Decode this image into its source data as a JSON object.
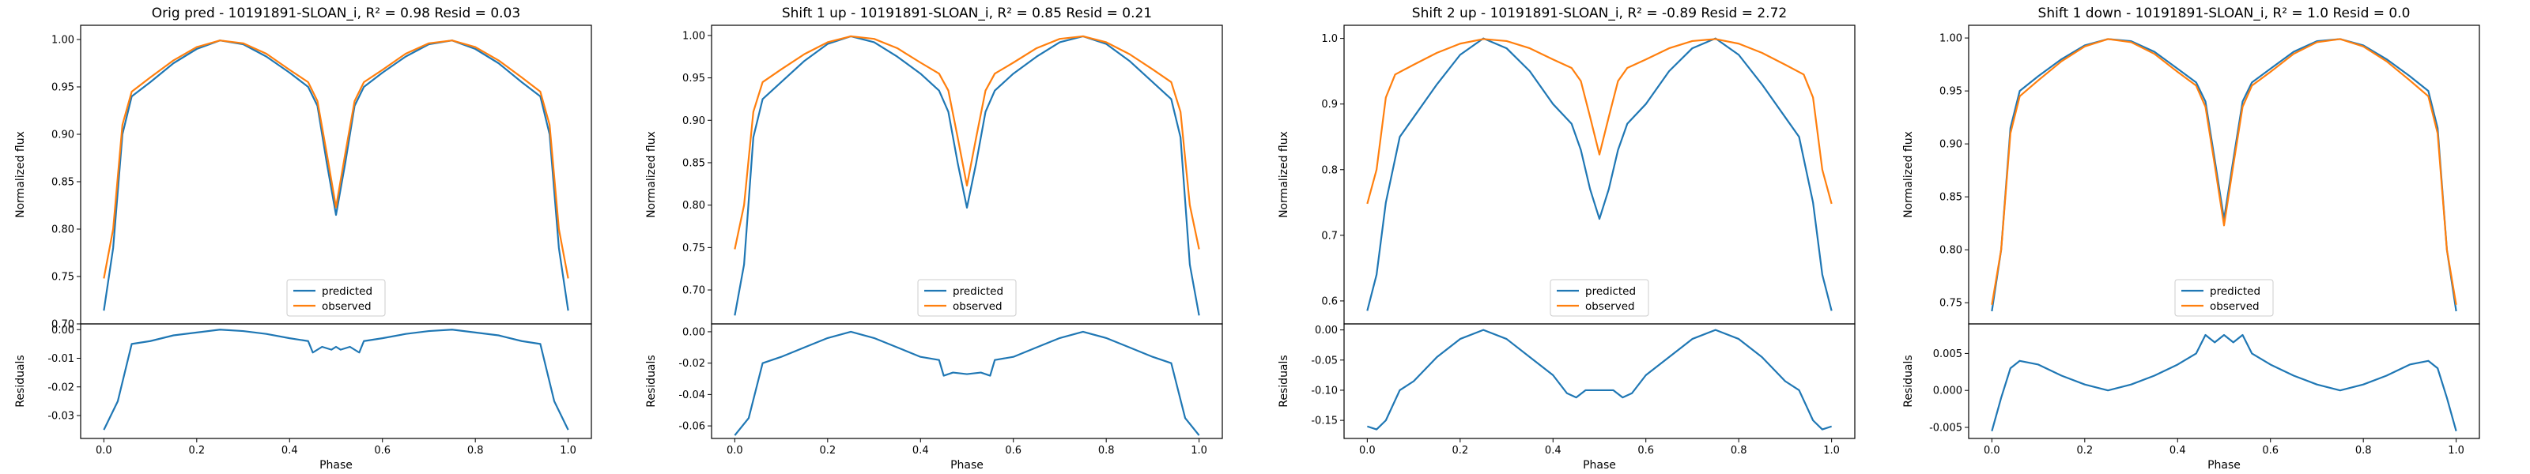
{
  "figure": {
    "xlabel": "Phase"
  },
  "colors": {
    "predicted": "#1f77b4",
    "observed": "#ff7f0e",
    "residual": "#1f77b4",
    "axes": "#000000",
    "legend_border": "#cccccc"
  },
  "chart_data": [
    {
      "type": "line",
      "title": "Orig pred - 10191891-SLOAN_i, R² = 0.98 Resid = 0.03",
      "xlabel": "Phase",
      "ylabel": "Normalized flux",
      "ylabel_resid": "Residuals",
      "xlim": [
        -0.05,
        1.05
      ],
      "ylim": [
        0.7,
        1.015
      ],
      "ylim_resid": [
        -0.038,
        0.002
      ],
      "xticks": [
        "0.0",
        "0.2",
        "0.4",
        "0.6",
        "0.8",
        "1.0"
      ],
      "yticks": [
        "0.70",
        "0.75",
        "0.80",
        "0.85",
        "0.90",
        "0.95",
        "1.00"
      ],
      "yticks_resid": [
        "-0.03",
        "-0.02",
        "-0.01",
        "0.00"
      ],
      "legend": {
        "position": "lower center",
        "entries": [
          "predicted",
          "observed"
        ]
      },
      "series": [
        {
          "name": "predicted",
          "x": [
            0,
            0.02,
            0.04,
            0.06,
            0.1,
            0.15,
            0.2,
            0.25,
            0.3,
            0.35,
            0.4,
            0.44,
            0.46,
            0.48,
            0.5,
            0.52,
            0.54,
            0.56,
            0.6,
            0.65,
            0.7,
            0.75,
            0.8,
            0.85,
            0.9,
            0.94,
            0.96,
            0.98,
            1.0
          ],
          "y": [
            0.714,
            0.78,
            0.9,
            0.94,
            0.955,
            0.975,
            0.99,
            0.999,
            0.995,
            0.982,
            0.965,
            0.95,
            0.93,
            0.87,
            0.815,
            0.87,
            0.93,
            0.95,
            0.965,
            0.982,
            0.995,
            0.999,
            0.99,
            0.975,
            0.955,
            0.94,
            0.9,
            0.78,
            0.714
          ]
        },
        {
          "name": "observed",
          "x": [
            0,
            0.02,
            0.04,
            0.06,
            0.1,
            0.15,
            0.2,
            0.25,
            0.3,
            0.35,
            0.4,
            0.44,
            0.46,
            0.48,
            0.5,
            0.52,
            0.54,
            0.56,
            0.6,
            0.65,
            0.7,
            0.75,
            0.8,
            0.85,
            0.9,
            0.94,
            0.96,
            0.98,
            1.0
          ],
          "y": [
            0.748,
            0.8,
            0.91,
            0.945,
            0.96,
            0.978,
            0.992,
            0.999,
            0.996,
            0.985,
            0.968,
            0.955,
            0.935,
            0.88,
            0.823,
            0.88,
            0.935,
            0.955,
            0.968,
            0.985,
            0.996,
            0.999,
            0.992,
            0.978,
            0.96,
            0.945,
            0.91,
            0.8,
            0.748
          ]
        }
      ],
      "residuals": {
        "x": [
          0,
          0.03,
          0.06,
          0.1,
          0.15,
          0.2,
          0.25,
          0.3,
          0.35,
          0.4,
          0.44,
          0.45,
          0.47,
          0.49,
          0.5,
          0.51,
          0.53,
          0.55,
          0.56,
          0.6,
          0.65,
          0.7,
          0.75,
          0.8,
          0.85,
          0.9,
          0.94,
          0.97,
          1.0
        ],
        "y": [
          -0.035,
          -0.025,
          -0.005,
          -0.004,
          -0.002,
          -0.001,
          0.0,
          -0.0005,
          -0.0015,
          -0.003,
          -0.004,
          -0.008,
          -0.006,
          -0.007,
          -0.006,
          -0.007,
          -0.006,
          -0.008,
          -0.004,
          -0.003,
          -0.0015,
          -0.0005,
          0.0,
          -0.001,
          -0.002,
          -0.004,
          -0.005,
          -0.025,
          -0.035
        ]
      }
    },
    {
      "type": "line",
      "title": "Shift 1 up - 10191891-SLOAN_i, R² = 0.85 Resid = 0.21",
      "xlabel": "Phase",
      "ylabel": "Normalized flux",
      "ylabel_resid": "Residuals",
      "xlim": [
        -0.05,
        1.05
      ],
      "ylim": [
        0.66,
        1.012
      ],
      "ylim_resid": [
        -0.068,
        0.005
      ],
      "xticks": [
        "0.0",
        "0.2",
        "0.4",
        "0.6",
        "0.8",
        "1.0"
      ],
      "yticks": [
        "0.70",
        "0.75",
        "0.80",
        "0.85",
        "0.90",
        "0.95",
        "1.00"
      ],
      "yticks_resid": [
        "-0.06",
        "-0.04",
        "-0.02",
        "0.00"
      ],
      "legend": {
        "position": "lower center",
        "entries": [
          "predicted",
          "observed"
        ]
      },
      "series": [
        {
          "name": "predicted",
          "x": [
            0,
            0.02,
            0.04,
            0.06,
            0.1,
            0.15,
            0.2,
            0.25,
            0.3,
            0.35,
            0.4,
            0.44,
            0.46,
            0.48,
            0.5,
            0.52,
            0.54,
            0.56,
            0.6,
            0.65,
            0.7,
            0.75,
            0.8,
            0.85,
            0.9,
            0.94,
            0.96,
            0.98,
            1.0
          ],
          "y": [
            0.67,
            0.73,
            0.88,
            0.925,
            0.945,
            0.97,
            0.99,
            0.999,
            0.992,
            0.975,
            0.955,
            0.935,
            0.91,
            0.85,
            0.797,
            0.85,
            0.91,
            0.935,
            0.955,
            0.975,
            0.992,
            0.999,
            0.99,
            0.97,
            0.945,
            0.925,
            0.88,
            0.73,
            0.67
          ]
        },
        {
          "name": "observed",
          "x": [
            0,
            0.02,
            0.04,
            0.06,
            0.1,
            0.15,
            0.2,
            0.25,
            0.3,
            0.35,
            0.4,
            0.44,
            0.46,
            0.48,
            0.5,
            0.52,
            0.54,
            0.56,
            0.6,
            0.65,
            0.7,
            0.75,
            0.8,
            0.85,
            0.9,
            0.94,
            0.96,
            0.98,
            1.0
          ],
          "y": [
            0.748,
            0.8,
            0.91,
            0.945,
            0.96,
            0.978,
            0.992,
            0.999,
            0.996,
            0.985,
            0.968,
            0.955,
            0.935,
            0.88,
            0.823,
            0.88,
            0.935,
            0.955,
            0.968,
            0.985,
            0.996,
            0.999,
            0.992,
            0.978,
            0.96,
            0.945,
            0.91,
            0.8,
            0.748
          ]
        }
      ],
      "residuals": {
        "x": [
          0,
          0.03,
          0.06,
          0.1,
          0.15,
          0.2,
          0.25,
          0.3,
          0.35,
          0.4,
          0.44,
          0.45,
          0.47,
          0.5,
          0.53,
          0.55,
          0.56,
          0.6,
          0.65,
          0.7,
          0.75,
          0.8,
          0.85,
          0.9,
          0.94,
          0.97,
          1.0
        ],
        "y": [
          -0.066,
          -0.055,
          -0.02,
          -0.016,
          -0.01,
          -0.004,
          0.0,
          -0.004,
          -0.01,
          -0.016,
          -0.018,
          -0.028,
          -0.026,
          -0.027,
          -0.026,
          -0.028,
          -0.018,
          -0.016,
          -0.01,
          -0.004,
          0.0,
          -0.004,
          -0.01,
          -0.016,
          -0.02,
          -0.055,
          -0.066
        ]
      }
    },
    {
      "type": "line",
      "title": "Shift 2 up - 10191891-SLOAN_i, R² = -0.89 Resid = 2.72",
      "xlabel": "Phase",
      "ylabel": "Normalized flux",
      "ylabel_resid": "Residuals",
      "xlim": [
        -0.05,
        1.05
      ],
      "ylim": [
        0.565,
        1.02
      ],
      "ylim_resid": [
        -0.18,
        0.01
      ],
      "xticks": [
        "0.0",
        "0.2",
        "0.4",
        "0.6",
        "0.8",
        "1.0"
      ],
      "yticks": [
        "0.6",
        "0.7",
        "0.8",
        "0.9",
        "1.0"
      ],
      "yticks_resid": [
        "-0.15",
        "-0.10",
        "-0.05",
        "0.00"
      ],
      "legend": {
        "position": "lower center",
        "entries": [
          "predicted",
          "observed"
        ]
      },
      "series": [
        {
          "name": "predicted",
          "x": [
            0,
            0.02,
            0.04,
            0.07,
            0.1,
            0.15,
            0.2,
            0.25,
            0.3,
            0.35,
            0.4,
            0.44,
            0.46,
            0.48,
            0.5,
            0.52,
            0.54,
            0.56,
            0.6,
            0.65,
            0.7,
            0.75,
            0.8,
            0.85,
            0.9,
            0.93,
            0.96,
            0.98,
            1.0
          ],
          "y": [
            0.585,
            0.64,
            0.75,
            0.85,
            0.88,
            0.93,
            0.975,
            1.0,
            0.985,
            0.95,
            0.9,
            0.87,
            0.83,
            0.77,
            0.725,
            0.77,
            0.83,
            0.87,
            0.9,
            0.95,
            0.985,
            1.0,
            0.975,
            0.93,
            0.88,
            0.85,
            0.75,
            0.64,
            0.585
          ]
        },
        {
          "name": "observed",
          "x": [
            0,
            0.02,
            0.04,
            0.06,
            0.1,
            0.15,
            0.2,
            0.25,
            0.3,
            0.35,
            0.4,
            0.44,
            0.46,
            0.48,
            0.5,
            0.52,
            0.54,
            0.56,
            0.6,
            0.65,
            0.7,
            0.75,
            0.8,
            0.85,
            0.9,
            0.94,
            0.96,
            0.98,
            1.0
          ],
          "y": [
            0.748,
            0.8,
            0.91,
            0.945,
            0.96,
            0.978,
            0.992,
            0.999,
            0.996,
            0.985,
            0.968,
            0.955,
            0.935,
            0.88,
            0.823,
            0.88,
            0.935,
            0.955,
            0.968,
            0.985,
            0.996,
            0.999,
            0.992,
            0.978,
            0.96,
            0.945,
            0.91,
            0.8,
            0.748
          ]
        }
      ],
      "residuals": {
        "x": [
          0,
          0.02,
          0.04,
          0.07,
          0.1,
          0.15,
          0.2,
          0.25,
          0.3,
          0.35,
          0.4,
          0.43,
          0.45,
          0.47,
          0.5,
          0.53,
          0.55,
          0.57,
          0.6,
          0.65,
          0.7,
          0.75,
          0.8,
          0.85,
          0.9,
          0.93,
          0.96,
          0.98,
          1.0
        ],
        "y": [
          -0.16,
          -0.165,
          -0.15,
          -0.1,
          -0.085,
          -0.045,
          -0.015,
          0.0,
          -0.015,
          -0.045,
          -0.075,
          -0.105,
          -0.112,
          -0.1,
          -0.1,
          -0.1,
          -0.112,
          -0.105,
          -0.075,
          -0.045,
          -0.015,
          0.0,
          -0.015,
          -0.045,
          -0.085,
          -0.1,
          -0.15,
          -0.165,
          -0.16
        ]
      }
    },
    {
      "type": "line",
      "title": "Shift 1 down - 10191891-SLOAN_i, R² = 1.0 Resid = 0.0",
      "xlabel": "Phase",
      "ylabel": "Normalized flux",
      "ylabel_resid": "Residuals",
      "xlim": [
        -0.05,
        1.05
      ],
      "ylim": [
        0.73,
        1.012
      ],
      "ylim_resid": [
        -0.0065,
        0.009
      ],
      "xticks": [
        "0.0",
        "0.2",
        "0.4",
        "0.6",
        "0.8",
        "1.0"
      ],
      "yticks": [
        "0.75",
        "0.80",
        "0.85",
        "0.90",
        "0.95",
        "1.00"
      ],
      "yticks_resid": [
        "-0.005",
        "0.000",
        "0.005"
      ],
      "legend": {
        "position": "lower center",
        "entries": [
          "predicted",
          "observed"
        ]
      },
      "series": [
        {
          "name": "predicted",
          "x": [
            0,
            0.02,
            0.04,
            0.06,
            0.1,
            0.15,
            0.2,
            0.25,
            0.3,
            0.35,
            0.4,
            0.44,
            0.46,
            0.48,
            0.5,
            0.52,
            0.54,
            0.56,
            0.6,
            0.65,
            0.7,
            0.75,
            0.8,
            0.85,
            0.9,
            0.94,
            0.96,
            0.98,
            1.0
          ],
          "y": [
            0.742,
            0.8,
            0.915,
            0.95,
            0.964,
            0.98,
            0.993,
            0.999,
            0.997,
            0.987,
            0.971,
            0.958,
            0.94,
            0.885,
            0.829,
            0.885,
            0.94,
            0.958,
            0.971,
            0.987,
            0.997,
            0.999,
            0.993,
            0.98,
            0.964,
            0.95,
            0.915,
            0.8,
            0.742
          ]
        },
        {
          "name": "observed",
          "x": [
            0,
            0.02,
            0.04,
            0.06,
            0.1,
            0.15,
            0.2,
            0.25,
            0.3,
            0.35,
            0.4,
            0.44,
            0.46,
            0.48,
            0.5,
            0.52,
            0.54,
            0.56,
            0.6,
            0.65,
            0.7,
            0.75,
            0.8,
            0.85,
            0.9,
            0.94,
            0.96,
            0.98,
            1.0
          ],
          "y": [
            0.748,
            0.8,
            0.91,
            0.945,
            0.96,
            0.978,
            0.992,
            0.999,
            0.996,
            0.985,
            0.968,
            0.955,
            0.935,
            0.88,
            0.823,
            0.88,
            0.935,
            0.955,
            0.968,
            0.985,
            0.996,
            0.999,
            0.992,
            0.978,
            0.96,
            0.945,
            0.91,
            0.8,
            0.748
          ]
        }
      ],
      "residuals": {
        "x": [
          0,
          0.02,
          0.04,
          0.06,
          0.1,
          0.15,
          0.2,
          0.25,
          0.3,
          0.35,
          0.4,
          0.44,
          0.46,
          0.48,
          0.5,
          0.52,
          0.54,
          0.56,
          0.6,
          0.65,
          0.7,
          0.75,
          0.8,
          0.85,
          0.9,
          0.94,
          0.96,
          0.98,
          1.0
        ],
        "y": [
          -0.0055,
          -0.001,
          0.003,
          0.004,
          0.0035,
          0.002,
          0.0008,
          0.0,
          0.0008,
          0.002,
          0.0035,
          0.005,
          0.0075,
          0.0065,
          0.0075,
          0.0065,
          0.0075,
          0.005,
          0.0035,
          0.002,
          0.0008,
          0.0,
          0.0008,
          0.002,
          0.0035,
          0.004,
          0.003,
          -0.001,
          -0.0055
        ]
      }
    }
  ]
}
